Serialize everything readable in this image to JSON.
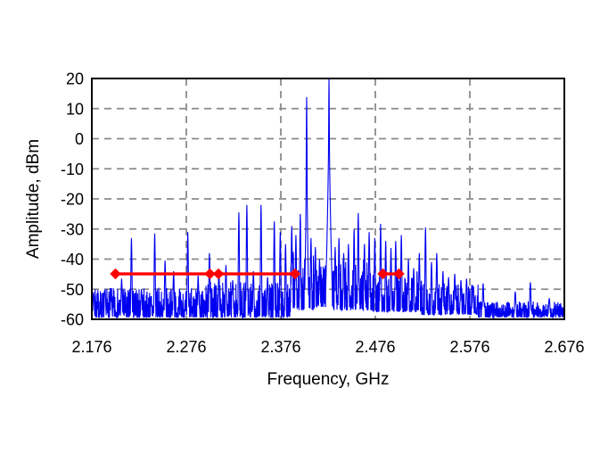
{
  "figure": {
    "kind": "rf-spectrum-plot",
    "title": ""
  },
  "colors": {
    "background": "#ffffff",
    "trace": "#0000f0",
    "markers": "#ff0000",
    "grid": "#8a8a8a",
    "frame": "#000000",
    "text": "#000000"
  },
  "chart_data": {
    "type": "line",
    "title": "",
    "xlabel": "Frequency, GHz",
    "ylabel": "Amplitude, dBm",
    "xlim": [
      2.176,
      2.676
    ],
    "ylim": [
      -60,
      20
    ],
    "x_tick_labels": [
      "2.176",
      "2.276",
      "2.376",
      "2.476",
      "2.576",
      "2.676"
    ],
    "y_tick_labels": [
      "20",
      "10",
      "0",
      "-10",
      "-20",
      "-30",
      "-40",
      "-50",
      "-60"
    ],
    "grid": "dashed-both",
    "legend": "none",
    "series": [
      {
        "name": "spectrum",
        "style": "dense-noisy-line",
        "color": "#0000f0",
        "noise_floor_bands_ghz_lo_hi_exp": [
          [
            2.176,
            2.296,
            -59.4,
            -49.5,
            2.3
          ],
          [
            2.296,
            2.386,
            -59.4,
            -47.5,
            2.4
          ],
          [
            2.386,
            2.412,
            -57.0,
            -37.0,
            1.8
          ],
          [
            2.412,
            2.425,
            -56.0,
            -42.0,
            2.0
          ],
          [
            2.425,
            2.47,
            -57.0,
            -40.0,
            2.2
          ],
          [
            2.47,
            2.525,
            -57.5,
            -44.0,
            2.4
          ],
          [
            2.525,
            2.585,
            -58.5,
            -48.0,
            2.4
          ],
          [
            2.585,
            2.676,
            -59.4,
            -54.0,
            1.6
          ]
        ],
        "peaks_ghz_dbm": [
          [
            2.178,
            -51
          ],
          [
            2.19,
            -50.5
          ],
          [
            2.1965,
            -52
          ],
          [
            2.2075,
            -46.5
          ],
          [
            2.218,
            -33
          ],
          [
            2.2285,
            -50
          ],
          [
            2.2425,
            -31.5
          ],
          [
            2.2535,
            -40.5
          ],
          [
            2.2625,
            -44
          ],
          [
            2.2775,
            -31
          ],
          [
            2.2885,
            -45.5
          ],
          [
            2.3005,
            -38
          ],
          [
            2.3105,
            -43.5
          ],
          [
            2.318,
            -42
          ],
          [
            2.325,
            -47
          ],
          [
            2.3315,
            -24.5
          ],
          [
            2.34,
            -22
          ],
          [
            2.347,
            -44
          ],
          [
            2.355,
            -22
          ],
          [
            2.362,
            -46
          ],
          [
            2.369,
            -27.5
          ],
          [
            2.3755,
            -31
          ],
          [
            2.381,
            -35
          ],
          [
            2.3875,
            -29
          ],
          [
            2.392,
            -32
          ],
          [
            2.3965,
            -25
          ],
          [
            2.4034,
            13.8,
            0.002
          ],
          [
            2.408,
            -33
          ],
          [
            2.4125,
            -36
          ],
          [
            2.417,
            -40
          ],
          [
            2.427,
            20,
            0.0035
          ],
          [
            2.4335,
            -36
          ],
          [
            2.4375,
            -33
          ],
          [
            2.4425,
            -38
          ],
          [
            2.4475,
            -35
          ],
          [
            2.4535,
            -30
          ],
          [
            2.458,
            -24.7
          ],
          [
            2.4645,
            -35
          ],
          [
            2.4695,
            -31
          ],
          [
            2.4755,
            -33
          ],
          [
            2.4815,
            -28.3
          ],
          [
            2.487,
            -34
          ],
          [
            2.4925,
            -36.3
          ],
          [
            2.4975,
            -34
          ],
          [
            2.5035,
            -32
          ],
          [
            2.511,
            -40
          ],
          [
            2.5165,
            -43
          ],
          [
            2.5225,
            -38
          ],
          [
            2.529,
            -29.5
          ],
          [
            2.5355,
            -41
          ],
          [
            2.541,
            -38
          ],
          [
            2.5475,
            -44
          ],
          [
            2.5535,
            -46
          ],
          [
            2.56,
            -44.9
          ],
          [
            2.5665,
            -47
          ],
          [
            2.5725,
            -46.5
          ],
          [
            2.579,
            -48.7
          ],
          [
            2.59,
            -48.1
          ],
          [
            2.624,
            -50.8
          ],
          [
            2.64,
            -47.7
          ],
          [
            2.66,
            -53
          ]
        ]
      },
      {
        "name": "markers",
        "style": "line-with-diamond-markers",
        "color": "#ff0000",
        "level_dbm": -44.9,
        "segments_ghz": [
          [
            2.201,
            2.301,
            2.31,
            2.391
          ],
          [
            2.484,
            2.501
          ]
        ]
      }
    ]
  }
}
